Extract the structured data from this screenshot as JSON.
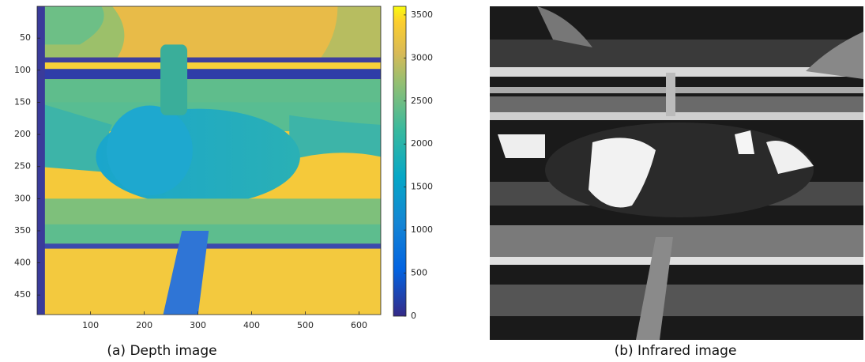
{
  "chart_data": [
    {
      "type": "image",
      "title": "(a) Depth image",
      "xlim": [
        0.5,
        640.5
      ],
      "xticks": [
        100,
        200,
        300,
        400,
        500,
        600
      ],
      "ylim": [
        0.5,
        480.5
      ],
      "yticks": [
        50,
        100,
        150,
        200,
        250,
        300,
        350,
        400,
        450
      ],
      "y_reversed": true,
      "colormap": "parula",
      "colorbar": {
        "lim": [
          0,
          3600
        ],
        "ticks": [
          0,
          500,
          1000,
          1500,
          2000,
          2500,
          3000,
          3500
        ]
      }
    },
    {
      "type": "image",
      "title": "(b) Infrared image",
      "colormap": "gray"
    }
  ]
}
